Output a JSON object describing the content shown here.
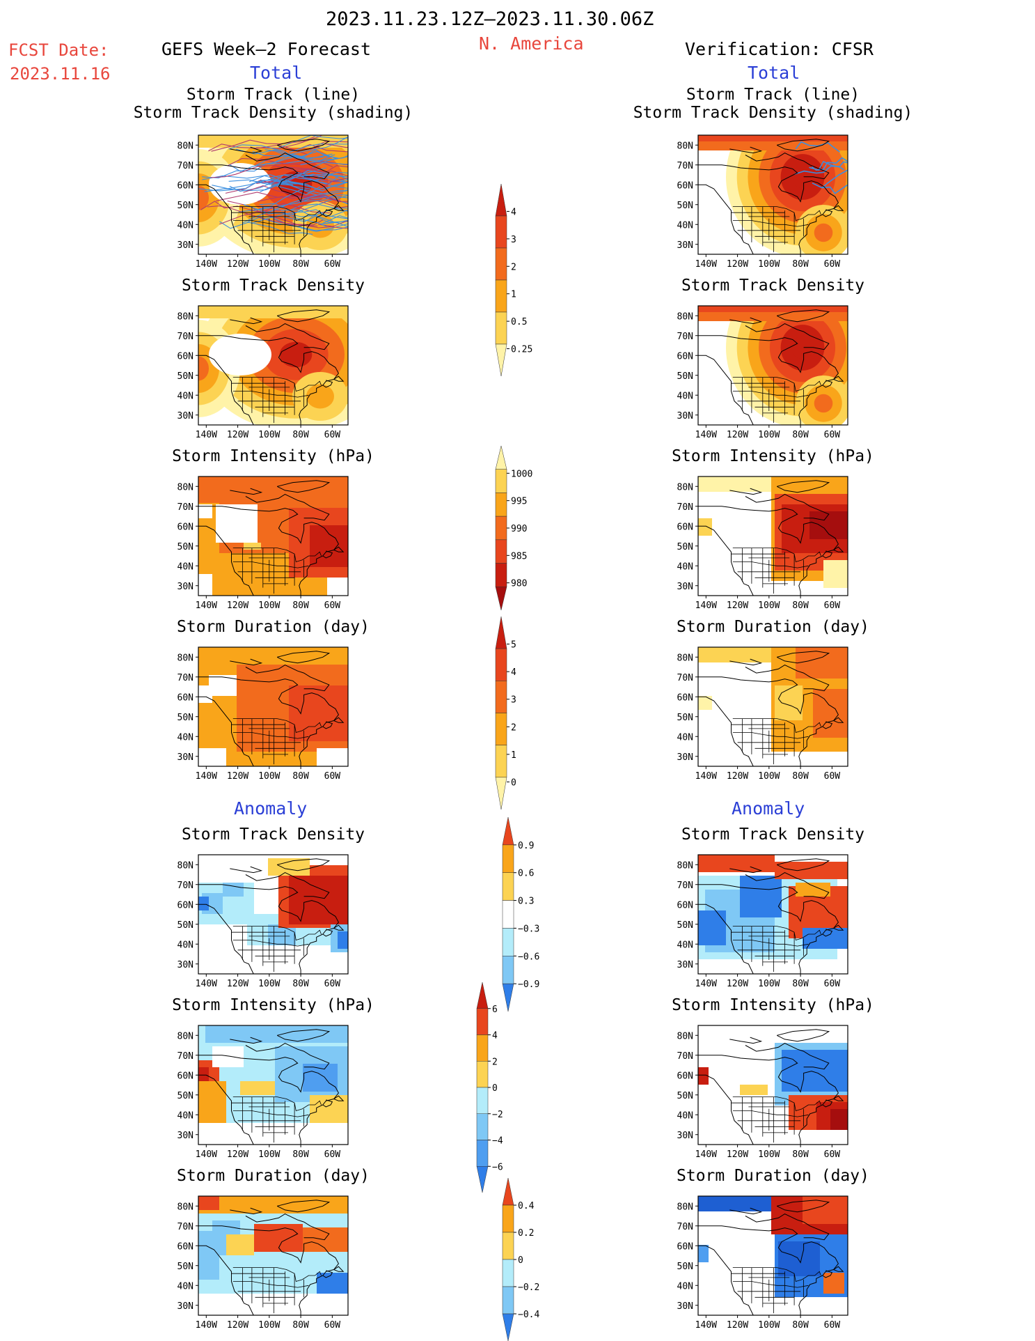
{
  "header": {
    "period": "2023.11.23.12Z–2023.11.30.06Z",
    "region": "N. America",
    "fcst_label": "FCST Date:",
    "fcst_date": "2023.11.16",
    "left_title": "GEFS Week–2 Forecast",
    "right_title": "Verification: CFSR",
    "left_subtitle": "Total",
    "right_subtitle": "Total",
    "left_anomaly": "Anomaly",
    "right_anomaly": "Anomaly"
  },
  "axes": {
    "lat_labels": [
      "80N",
      "70N",
      "60N",
      "50N",
      "40N",
      "30N"
    ],
    "lon_labels": [
      "140W",
      "120W",
      "100W",
      "80W",
      "60W"
    ]
  },
  "panels": [
    {
      "row": 0,
      "col": "left",
      "title_lines": [
        "Storm Track (line)",
        "Storm Track Density (shading)"
      ],
      "map": "track-density-tracks"
    },
    {
      "row": 0,
      "col": "right",
      "title_lines": [
        "Storm Track (line)",
        "Storm Track Density (shading)"
      ],
      "map": "track-density-tracks"
    },
    {
      "row": 1,
      "col": "left",
      "title_lines": [
        "Storm Track Density"
      ],
      "map": "track-density"
    },
    {
      "row": 1,
      "col": "right",
      "title_lines": [
        "Storm Track Density"
      ],
      "map": "track-density"
    },
    {
      "row": 2,
      "col": "left",
      "title_lines": [
        "Storm Intensity (hPa)"
      ],
      "map": "intensity"
    },
    {
      "row": 2,
      "col": "right",
      "title_lines": [
        "Storm Intensity (hPa)"
      ],
      "map": "intensity"
    },
    {
      "row": 3,
      "col": "left",
      "title_lines": [
        "Storm Duration (day)"
      ],
      "map": "duration"
    },
    {
      "row": 3,
      "col": "right",
      "title_lines": [
        "Storm Duration (day)"
      ],
      "map": "duration"
    },
    {
      "row": 4,
      "col": "left",
      "title_lines": [
        "Storm Track Density"
      ],
      "map": "density-anomaly"
    },
    {
      "row": 4,
      "col": "right",
      "title_lines": [
        "Storm Track Density"
      ],
      "map": "density-anomaly"
    },
    {
      "row": 5,
      "col": "left",
      "title_lines": [
        "Storm Intensity (hPa)"
      ],
      "map": "intensity-anomaly"
    },
    {
      "row": 5,
      "col": "right",
      "title_lines": [
        "Storm Intensity (hPa)"
      ],
      "map": "intensity-anomaly"
    },
    {
      "row": 6,
      "col": "left",
      "title_lines": [
        "Storm Duration (day)"
      ],
      "map": "duration-anomaly"
    },
    {
      "row": 6,
      "col": "right",
      "title_lines": [
        "Storm Duration (day)"
      ],
      "map": "duration-anomaly"
    }
  ],
  "colorbars": [
    {
      "name": "track-density-total",
      "labels": [
        "4",
        "3",
        "2",
        "1",
        "0.5",
        "0.25"
      ],
      "colors": [
        "#c81e10",
        "#e8461e",
        "#f26b1d",
        "#f9a51a",
        "#fcd353",
        "#fff3a8"
      ]
    },
    {
      "name": "intensity-total",
      "labels": [
        "1000",
        "995",
        "990",
        "985",
        "980"
      ],
      "colors": [
        "#fff3a8",
        "#fcd353",
        "#f9a51a",
        "#f26b1d",
        "#e8461e",
        "#c81e10",
        "#a50e0e"
      ]
    },
    {
      "name": "duration-total",
      "labels": [
        "5",
        "4",
        "3",
        "2",
        "1",
        "0"
      ],
      "colors": [
        "#c81e10",
        "#e8461e",
        "#f26b1d",
        "#f9a51a",
        "#fcd353",
        "#fff3a8"
      ]
    },
    {
      "name": "density-anomaly",
      "labels": [
        "0.9",
        "0.6",
        "0.3",
        "−0.3",
        "−0.6",
        "−0.9"
      ],
      "colors": [
        "#e8461e",
        "#f9a51a",
        "#fcd353",
        "#ffffff",
        "#b3ecfa",
        "#7fc8f5",
        "#2f7ee8"
      ]
    },
    {
      "name": "intensity-anomaly",
      "labels": [
        "6",
        "4",
        "2",
        "0",
        "−2",
        "−4",
        "−6"
      ],
      "colors": [
        "#c81e10",
        "#e8461e",
        "#f9a51a",
        "#fcd353",
        "#b3ecfa",
        "#7fc8f5",
        "#4f9ef0",
        "#2f7ee8"
      ]
    },
    {
      "name": "duration-anomaly",
      "labels": [
        "0.4",
        "0.2",
        "0",
        "−0.2",
        "−0.4"
      ],
      "colors": [
        "#e8461e",
        "#f9a51a",
        "#fcd353",
        "#b3ecfa",
        "#7fc8f5",
        "#2f7ee8"
      ]
    }
  ]
}
